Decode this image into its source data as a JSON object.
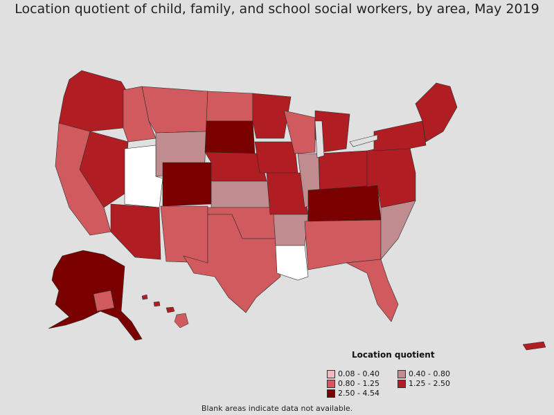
{
  "title": "Location quotient of child, family, and school social workers, by area, May 2019",
  "legend": {
    "title": "Location quotient",
    "items": [
      {
        "label": "0.08 - 0.40",
        "color": "#f7b6c2"
      },
      {
        "label": "0.40 - 0.80",
        "color": "#c08c90"
      },
      {
        "label": "0.80 - 1.25",
        "color": "#d05a5e"
      },
      {
        "label": "1.25 - 2.50",
        "color": "#b01e24"
      },
      {
        "label": "2.50 - 4.54",
        "color": "#7a0000"
      }
    ]
  },
  "footnote": "Blank areas indicate data not available.",
  "colors": {
    "background": "#e0e0e0",
    "border": "#222222",
    "no_data": "#ffffff"
  }
}
